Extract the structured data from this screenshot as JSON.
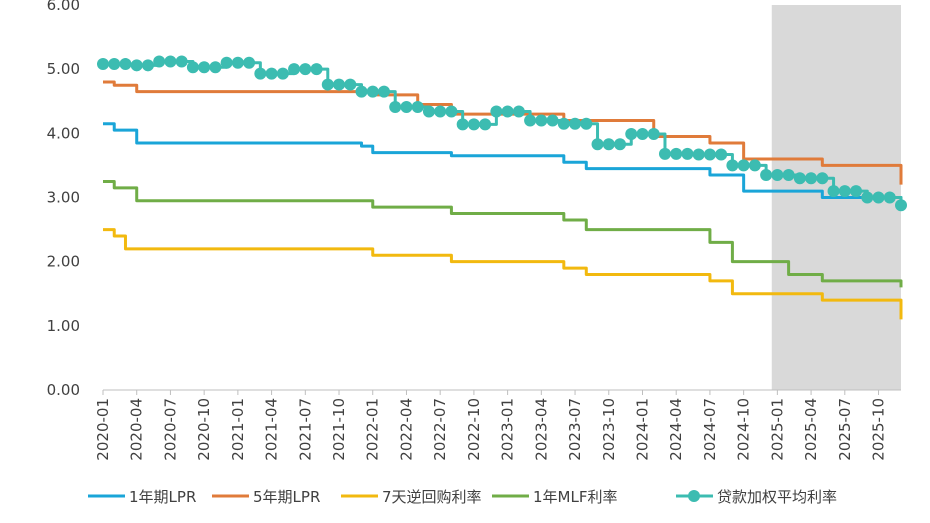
{
  "chart_data": {
    "type": "line",
    "ylim": [
      0,
      6
    ],
    "yticks": [
      "0.00",
      "1.00",
      "2.00",
      "3.00",
      "4.00",
      "5.00",
      "6.00"
    ],
    "xticks": [
      "2020-01",
      "2020-04",
      "2020-07",
      "2020-10",
      "2021-01",
      "2021-04",
      "2021-07",
      "2021-10",
      "2022-01",
      "2022-04",
      "2022-07",
      "2022-10",
      "2023-01",
      "2023-04",
      "2023-07",
      "2023-10",
      "2024-01",
      "2024-04",
      "2024-07",
      "2024-10",
      "2025-01",
      "2025-04",
      "2025-07",
      "2025-10"
    ],
    "x_start": "2020-01",
    "x_end": "2025-12",
    "shaded_region": {
      "from": "2024-12",
      "to": "2025-12",
      "color": "#d9d9d9"
    },
    "grid": false,
    "legend_position": "bottom",
    "series": [
      {
        "name": "1年期LPR",
        "color": "#1aa5d8",
        "marker": false,
        "steps": [
          [
            "2020-01",
            4.15
          ],
          [
            "2020-02",
            4.05
          ],
          [
            "2020-04",
            3.85
          ],
          [
            "2021-12",
            3.8
          ],
          [
            "2022-01",
            3.7
          ],
          [
            "2022-08",
            3.65
          ],
          [
            "2023-06",
            3.55
          ],
          [
            "2023-08",
            3.45
          ],
          [
            "2024-07",
            3.35
          ],
          [
            "2024-10",
            3.1
          ],
          [
            "2025-01",
            3.1
          ],
          [
            "2025-05",
            3.0
          ],
          [
            "2025-12",
            2.9
          ]
        ]
      },
      {
        "name": "5年期LPR",
        "color": "#e07b3a",
        "marker": false,
        "steps": [
          [
            "2020-01",
            4.8
          ],
          [
            "2020-02",
            4.75
          ],
          [
            "2020-04",
            4.65
          ],
          [
            "2022-01",
            4.6
          ],
          [
            "2022-05",
            4.45
          ],
          [
            "2022-08",
            4.3
          ],
          [
            "2023-06",
            4.2
          ],
          [
            "2024-02",
            3.95
          ],
          [
            "2024-07",
            3.85
          ],
          [
            "2024-10",
            3.6
          ],
          [
            "2025-01",
            3.6
          ],
          [
            "2025-05",
            3.5
          ],
          [
            "2025-12",
            3.2
          ]
        ]
      },
      {
        "name": "7天逆回购利率",
        "color": "#f2b90f",
        "marker": false,
        "steps": [
          [
            "2020-01",
            2.5
          ],
          [
            "2020-02",
            2.4
          ],
          [
            "2020-03",
            2.2
          ],
          [
            "2022-01",
            2.1
          ],
          [
            "2022-08",
            2.0
          ],
          [
            "2023-06",
            1.9
          ],
          [
            "2023-08",
            1.8
          ],
          [
            "2024-07",
            1.7
          ],
          [
            "2024-09",
            1.5
          ],
          [
            "2025-01",
            1.5
          ],
          [
            "2025-05",
            1.4
          ],
          [
            "2025-12",
            1.1
          ]
        ]
      },
      {
        "name": "1年MLF利率",
        "color": "#70ad47",
        "marker": false,
        "steps": [
          [
            "2020-01",
            3.25
          ],
          [
            "2020-02",
            3.15
          ],
          [
            "2020-04",
            2.95
          ],
          [
            "2022-01",
            2.85
          ],
          [
            "2022-08",
            2.75
          ],
          [
            "2023-06",
            2.65
          ],
          [
            "2023-08",
            2.5
          ],
          [
            "2024-07",
            2.3
          ],
          [
            "2024-09",
            2.0
          ],
          [
            "2025-01",
            2.0
          ],
          [
            "2025-02",
            1.8
          ],
          [
            "2025-05",
            1.7
          ],
          [
            "2025-12",
            1.6
          ]
        ]
      },
      {
        "name": "贷款加权平均利率",
        "color": "#3cbcb1",
        "marker": true,
        "steps": [
          [
            "2020-01",
            5.08
          ],
          [
            "2020-04",
            5.06
          ],
          [
            "2020-06",
            5.12
          ],
          [
            "2020-09",
            5.03
          ],
          [
            "2020-12",
            5.1
          ],
          [
            "2021-03",
            4.93
          ],
          [
            "2021-06",
            5.0
          ],
          [
            "2021-09",
            4.76
          ],
          [
            "2021-12",
            4.65
          ],
          [
            "2022-03",
            4.41
          ],
          [
            "2022-06",
            4.34
          ],
          [
            "2022-09",
            4.14
          ],
          [
            "2022-12",
            4.34
          ],
          [
            "2023-03",
            4.2
          ],
          [
            "2023-06",
            4.15
          ],
          [
            "2023-09",
            3.83
          ],
          [
            "2023-12",
            3.99
          ],
          [
            "2024-03",
            3.68
          ],
          [
            "2024-06",
            3.67
          ],
          [
            "2024-09",
            3.5
          ],
          [
            "2024-12",
            3.35
          ],
          [
            "2025-03",
            3.3
          ],
          [
            "2025-06",
            3.1
          ],
          [
            "2025-09",
            3.0
          ],
          [
            "2025-12",
            2.88
          ]
        ]
      }
    ]
  }
}
